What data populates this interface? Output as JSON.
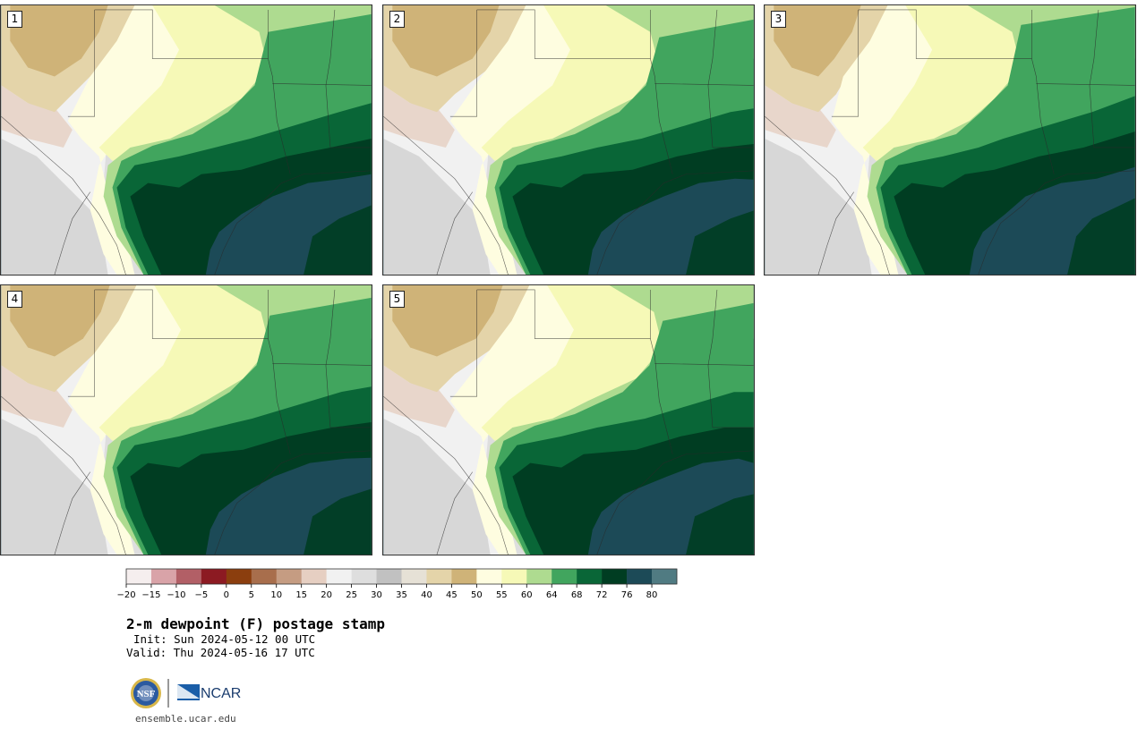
{
  "panels": [
    {
      "label": "1",
      "variant": 0
    },
    {
      "label": "2",
      "variant": 1
    },
    {
      "label": "3",
      "variant": 2
    },
    {
      "label": "4",
      "variant": 3
    },
    {
      "label": "5",
      "variant": 4
    }
  ],
  "colorbar": {
    "ticks": [
      "-20",
      "-15",
      "-10",
      "-5",
      "0",
      "5",
      "10",
      "15",
      "20",
      "25",
      "30",
      "35",
      "40",
      "45",
      "50",
      "55",
      "60",
      "64",
      "68",
      "72",
      "76",
      "80"
    ],
    "colors": [
      "#f5eeee",
      "#d9a3a8",
      "#b25f66",
      "#8c1a22",
      "#8b3e0e",
      "#a86e4c",
      "#c59c82",
      "#e6cfc2",
      "#f1f1f1",
      "#dedede",
      "#c1c1c1",
      "#e6e1d6",
      "#e4d4a9",
      "#cfb378",
      "#fefde0",
      "#f6f9b7",
      "#aedb90",
      "#41a55e",
      "#096637",
      "#003d22",
      "#1c4a57",
      "#507b82"
    ]
  },
  "title": "2-m dewpoint (F) postage stamp",
  "init": "Init: Sun 2024-05-12 00 UTC",
  "valid": "Valid: Thu 2024-05-16 17 UTC",
  "logo": {
    "nsf": "NSF",
    "ncar": "NCAR"
  },
  "url": "ensemble.ucar.edu"
}
